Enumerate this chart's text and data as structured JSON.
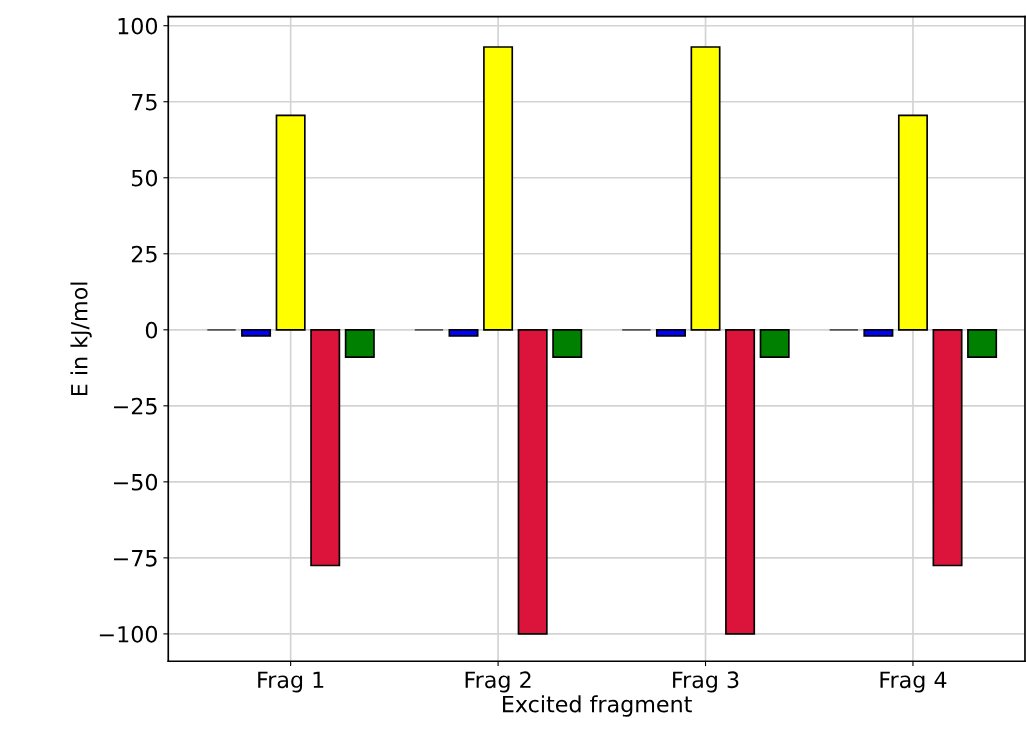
{
  "chart_data": {
    "type": "bar",
    "xlabel": "Excited fragment",
    "ylabel": "E in kJ/mol",
    "categories": [
      "Frag 1",
      "Frag 2",
      "Frag 3",
      "Frag 4"
    ],
    "series": [
      {
        "color": "#555555",
        "values": [
          0,
          0,
          0,
          0
        ]
      },
      {
        "color": "#0000ff",
        "values": [
          -2,
          -2,
          -2,
          -2
        ]
      },
      {
        "color": "#ffff00",
        "values": [
          70.5,
          93,
          93,
          70.5
        ]
      },
      {
        "color": "#dc143c",
        "values": [
          -77.5,
          -100,
          -100,
          -77.5
        ]
      },
      {
        "color": "#008000",
        "values": [
          -9,
          -9,
          -9,
          -9
        ]
      }
    ],
    "ylim": [
      -109,
      103
    ],
    "yticks": [
      -100,
      -75,
      -50,
      -25,
      0,
      25,
      50,
      75,
      100
    ],
    "grid": true
  }
}
